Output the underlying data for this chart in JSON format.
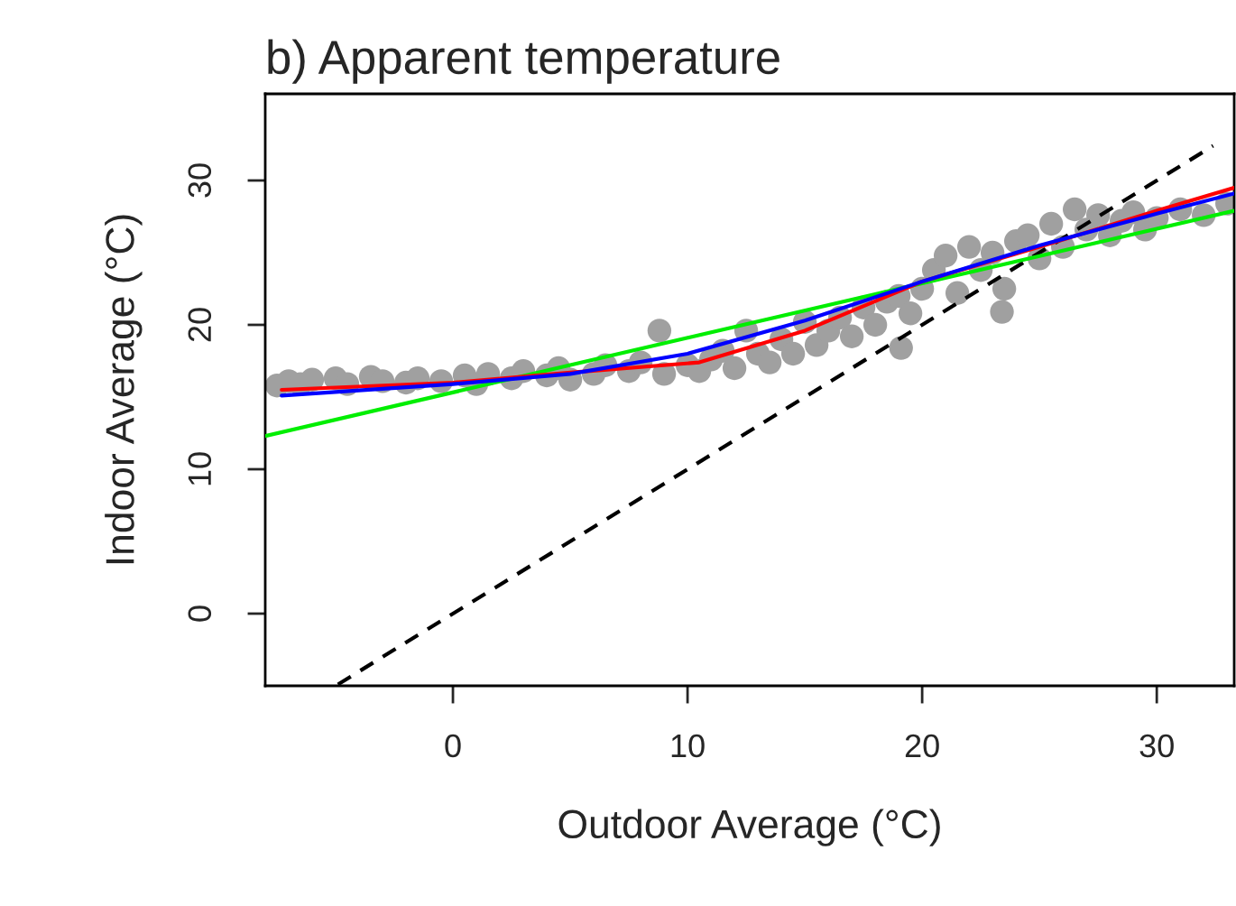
{
  "chart_data": {
    "type": "scatter",
    "title": "b) Apparent temperature",
    "xlabel": "Outdoor Average (°C)",
    "ylabel": "Indoor Average (°C)",
    "xlim": [
      -8,
      33.3
    ],
    "ylim": [
      -5,
      36
    ],
    "xticks": [
      0,
      10,
      20,
      30
    ],
    "yticks": [
      0,
      10,
      20,
      30
    ],
    "grid": false,
    "legend": false,
    "series": [
      {
        "color": "#a0a0a0",
        "marker": "circle",
        "x": [
          -7.5,
          -7,
          -6.5,
          -6,
          -5,
          -4.5,
          -3.5,
          -3,
          -2,
          -1.5,
          -0.5,
          0.5,
          1,
          1.5,
          2.5,
          3,
          4,
          4.5,
          5,
          6,
          6.5,
          7.5,
          8,
          8.8,
          9,
          10,
          10.5,
          11,
          11.5,
          12,
          12.5,
          13,
          13.5,
          14,
          14.5,
          15,
          15.5,
          16,
          16.5,
          17,
          17.5,
          18,
          18.5,
          19,
          19.1,
          19.5,
          20,
          20.5,
          21,
          21.5,
          22,
          22.5,
          23,
          23.4,
          23.5,
          24,
          24.5,
          25,
          25.5,
          26,
          26.5,
          27,
          27.5,
          28,
          28.5,
          29,
          29.5,
          30,
          31,
          32,
          33
        ],
        "values": [
          15.8,
          16.1,
          15.9,
          16.2,
          16.3,
          15.9,
          16.4,
          16.1,
          16.0,
          16.3,
          16.1,
          16.5,
          15.9,
          16.6,
          16.3,
          16.8,
          16.5,
          17.0,
          16.2,
          16.6,
          17.2,
          16.8,
          17.4,
          19.6,
          16.6,
          17.2,
          16.8,
          17.6,
          18.2,
          17.0,
          19.6,
          18.0,
          17.4,
          19.0,
          18.0,
          20.2,
          18.6,
          19.6,
          20.5,
          19.2,
          21.2,
          20.0,
          21.6,
          22.0,
          18.4,
          20.8,
          22.5,
          23.8,
          24.8,
          22.2,
          25.4,
          23.8,
          25.0,
          20.9,
          22.5,
          25.8,
          26.2,
          24.6,
          27.0,
          25.4,
          28.0,
          26.6,
          27.6,
          26.2,
          27.2,
          27.8,
          26.6,
          27.4,
          28.0,
          27.6,
          28.4
        ]
      },
      {
        "type": "line",
        "color": "#000000",
        "line_style": "dashed",
        "x": [
          -4.9,
          32.4
        ],
        "values": [
          -4.9,
          32.4
        ]
      },
      {
        "type": "line",
        "color": "#00ee00",
        "line_style": "solid",
        "x": [
          -8,
          33.3
        ],
        "values": [
          12.3,
          27.9
        ]
      },
      {
        "type": "line",
        "color": "#ff0000",
        "line_style": "solid",
        "x": [
          -7.3,
          0,
          5,
          10.5,
          15,
          20,
          25,
          30,
          33.3
        ],
        "values": [
          15.5,
          16.0,
          16.7,
          17.4,
          19.6,
          23.0,
          25.4,
          27.9,
          29.5
        ]
      },
      {
        "type": "line",
        "color": "#0000ff",
        "line_style": "solid",
        "x": [
          -7.3,
          0,
          5,
          10,
          15,
          20,
          25,
          30,
          33.3
        ],
        "values": [
          15.1,
          15.9,
          16.6,
          18.0,
          20.3,
          23.0,
          25.5,
          27.7,
          29.1
        ]
      }
    ]
  }
}
